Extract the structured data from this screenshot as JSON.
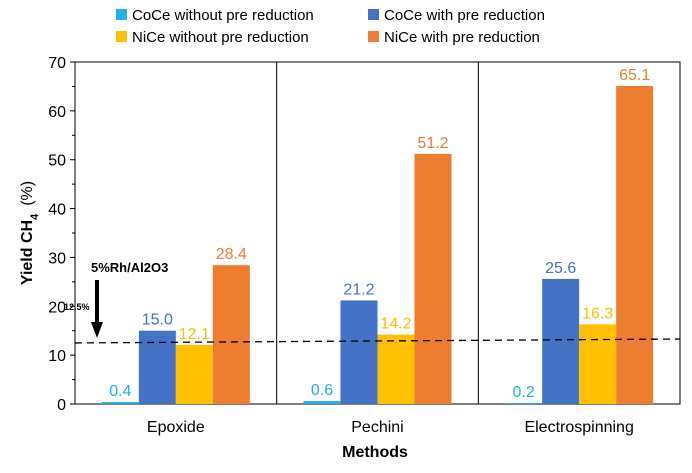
{
  "chart_data": {
    "type": "bar",
    "xlabel": "Methods",
    "ylabel": "Yield CH",
    "ylabel_subscript": "4",
    "ylabel_unit": "(%)",
    "ylim": [
      0,
      70
    ],
    "yticks": [
      0,
      10,
      20,
      30,
      40,
      50,
      60,
      70
    ],
    "grid": false,
    "legend_position": "top",
    "categories": [
      "Epoxide",
      "Pechini",
      "Electrospinning"
    ],
    "series": [
      {
        "name": "CoCe without pre reduction",
        "color": "#1FB1E8",
        "values": [
          0.4,
          0.6,
          0.2
        ],
        "labels": [
          "0.4",
          "0.6",
          "0.2"
        ]
      },
      {
        "name": "CoCe with pre reduction",
        "color": "#4472C4",
        "values": [
          15.0,
          21.2,
          25.6
        ],
        "labels": [
          "15.0",
          "21.2",
          "25.6"
        ]
      },
      {
        "name": "NiCe without pre reduction",
        "color": "#FFC000",
        "values": [
          12.1,
          14.2,
          16.3
        ],
        "labels": [
          "12.1",
          "14.2",
          "16.3"
        ]
      },
      {
        "name": "NiCe with pre reduction",
        "color": "#ED7D31",
        "values": [
          28.4,
          51.2,
          65.1
        ],
        "labels": [
          "28.4",
          "51.2",
          "65.1"
        ]
      }
    ],
    "reference_line": {
      "start_value": 12.5,
      "end_value": 13.3,
      "style": "dashed"
    },
    "annotations": {
      "reference_name": "5%Rh/Al2O3",
      "reference_value_text": "12.5%"
    }
  }
}
